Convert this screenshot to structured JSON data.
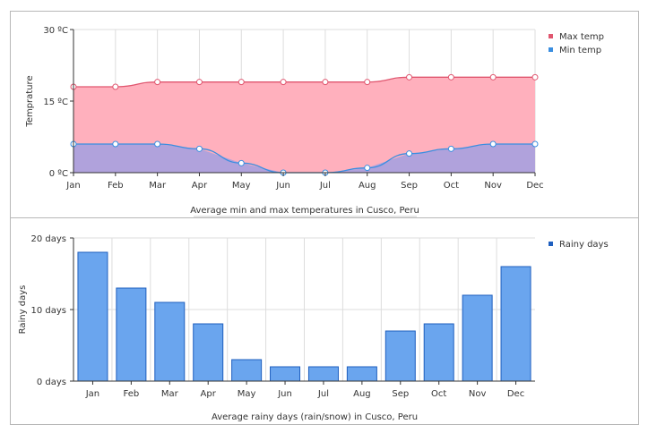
{
  "chart_data": [
    {
      "type": "area",
      "caption": "Average min and max temperatures in Cusco, Peru",
      "ylabel": "Temprature",
      "ylim": [
        0,
        30
      ],
      "yticks": [
        {
          "value": 0,
          "label": "0 ºC"
        },
        {
          "value": 15,
          "label": "15 ºC"
        },
        {
          "value": 30,
          "label": "30 ºC"
        }
      ],
      "categories": [
        "Jan",
        "Feb",
        "Mar",
        "Apr",
        "May",
        "Jun",
        "Jul",
        "Aug",
        "Sep",
        "Oct",
        "Nov",
        "Dec"
      ],
      "series": [
        {
          "name": "Max temp",
          "color": "#e0566f",
          "fill": "#ffb0bd",
          "values": [
            18,
            18,
            19,
            19,
            19,
            19,
            19,
            19,
            20,
            20,
            20,
            20
          ]
        },
        {
          "name": "Min temp",
          "color": "#3a8ee0",
          "fill": "#b0a2dc",
          "values": [
            6,
            6,
            6,
            5,
            2,
            0,
            0,
            1,
            4,
            5,
            6,
            6
          ]
        }
      ],
      "grid": true,
      "legend": "top-right"
    },
    {
      "type": "bar",
      "caption": "Average rainy days (rain/snow) in Cusco, Peru",
      "ylabel": "Rainy days",
      "ylim": [
        0,
        20
      ],
      "yticks": [
        {
          "value": 0,
          "label": "0 days"
        },
        {
          "value": 10,
          "label": "10 days"
        },
        {
          "value": 20,
          "label": "20 days"
        }
      ],
      "categories": [
        "Jan",
        "Feb",
        "Mar",
        "Apr",
        "May",
        "Jun",
        "Jul",
        "Aug",
        "Sep",
        "Oct",
        "Nov",
        "Dec"
      ],
      "series": [
        {
          "name": "Rainy days",
          "color": "#1f5fbf",
          "fill": "#6aa5ee",
          "values": [
            18,
            13,
            11,
            8,
            3,
            2,
            2,
            2,
            7,
            8,
            12,
            16
          ]
        }
      ],
      "grid": true,
      "legend": "top-right"
    }
  ]
}
